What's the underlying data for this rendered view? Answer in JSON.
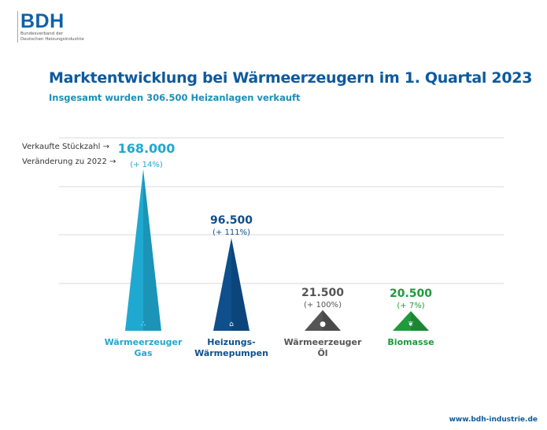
{
  "logo": {
    "text": "BDH",
    "line1": "Bundesverband der",
    "line2": "Deutschen Heizungsindustrie"
  },
  "title": "Marktentwicklung bei Wärmeerzeugern im 1. Quartal 2023",
  "subtitle": "Insgesamt wurden 306.500 Heizanlagen verkauft",
  "legend": {
    "units_label": "Verkaufte Stückzahl →",
    "change_label": "Veränderung zu 2022 →"
  },
  "footer_url": "www.bdh-industrie.de",
  "chart_data": {
    "type": "bar",
    "categories": [
      "Wärmeerzeuger Gas",
      "Heizungs-Wärmepumpen",
      "Wärmeerzeuger Öl",
      "Biomasse"
    ],
    "category_lines": [
      [
        "Wärmeerzeuger",
        "Gas"
      ],
      [
        "Heizungs-",
        "Wärmepumpen"
      ],
      [
        "Wärmeerzeuger",
        "Öl"
      ],
      [
        "Biomasse"
      ]
    ],
    "values": [
      168000,
      96500,
      21500,
      20500
    ],
    "value_labels": [
      "168.000",
      "96.500",
      "21.500",
      "20.500"
    ],
    "change_labels": [
      "(+ 14%)",
      "(+ 111%)",
      "(+ 100%)",
      "(+ 7%)"
    ],
    "colors": [
      "#1fa9d1",
      "#0e4f8c",
      "#555555",
      "#1f9a3c"
    ],
    "icons": [
      "gas-flame-icon",
      "heat-pump-icon",
      "oil-drop-icon",
      "leaf-icon"
    ],
    "grid": true
  }
}
